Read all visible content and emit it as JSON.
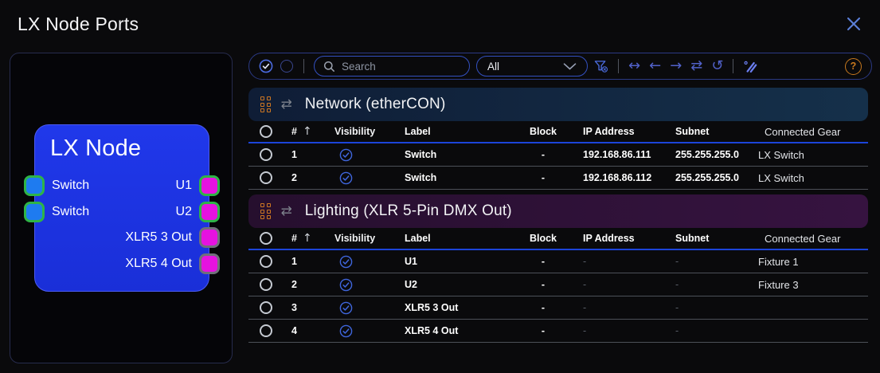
{
  "window": {
    "title": "LX Node Ports"
  },
  "colors": {
    "node_blue": "#1d33e3",
    "port_blue": "#1e7bf0",
    "port_magenta": "#e612e0",
    "port_connected_green": "#2eb447",
    "port_unconnected_gray": "#70707a",
    "accent_blue": "#3f66dd",
    "header_underline": "#1c44da",
    "help_orange": "#c8791e",
    "close_blue": "#5b7fd8"
  },
  "node": {
    "title": "LX Node",
    "left_ports": [
      {
        "label": "Switch",
        "connected": true
      },
      {
        "label": "Switch",
        "connected": true
      }
    ],
    "right_ports": [
      {
        "label": "U1",
        "connected": true
      },
      {
        "label": "U2",
        "connected": true
      },
      {
        "label": "XLR5 3 Out",
        "connected": false
      },
      {
        "label": "XLR5 4 Out",
        "connected": false
      }
    ]
  },
  "toolbar": {
    "search_placeholder": "Search",
    "filter_value": "All",
    "icons": {
      "select_all": "check-circle",
      "deselect_all": "circle",
      "search": "magnifier",
      "filter_clear": "funnel-x",
      "arrow_both": "↔",
      "arrow_left": "←",
      "arrow_right": "→",
      "arrow_swap": "⇄",
      "undo": "↺",
      "magic_edit": "crossed-pencils",
      "help": "?"
    }
  },
  "table": {
    "columns": {
      "num": "#",
      "visibility": "Visibility",
      "label": "Label",
      "block": "Block",
      "ip": "IP Address",
      "subnet": "Subnet",
      "gear": "Connected Gear"
    },
    "sort_icon": "↑",
    "section_swap_icon": "⇄"
  },
  "sections": [
    {
      "id": "network",
      "title": "Network (etherCON)",
      "gradient": [
        "#0f1d36",
        "#15304a"
      ],
      "rows": [
        {
          "num": "1",
          "label": "Switch",
          "block": "-",
          "ip": "192.168.86.111",
          "subnet": "255.255.255.0",
          "gear": "LX Switch"
        },
        {
          "num": "2",
          "label": "Switch",
          "block": "-",
          "ip": "192.168.86.112",
          "subnet": "255.255.255.0",
          "gear": "LX Switch"
        }
      ]
    },
    {
      "id": "lighting",
      "title": "Lighting (XLR 5-Pin DMX Out)",
      "gradient": [
        "#260f2e",
        "#361340"
      ],
      "rows": [
        {
          "num": "1",
          "label": "U1",
          "block": "-",
          "ip": "-",
          "subnet": "-",
          "gear": "Fixture 1"
        },
        {
          "num": "2",
          "label": "U2",
          "block": "-",
          "ip": "-",
          "subnet": "-",
          "gear": "Fixture 3"
        },
        {
          "num": "3",
          "label": "XLR5 3 Out",
          "block": "-",
          "ip": "-",
          "subnet": "-",
          "gear": ""
        },
        {
          "num": "4",
          "label": "XLR5 4 Out",
          "block": "-",
          "ip": "-",
          "subnet": "-",
          "gear": ""
        }
      ]
    }
  ]
}
